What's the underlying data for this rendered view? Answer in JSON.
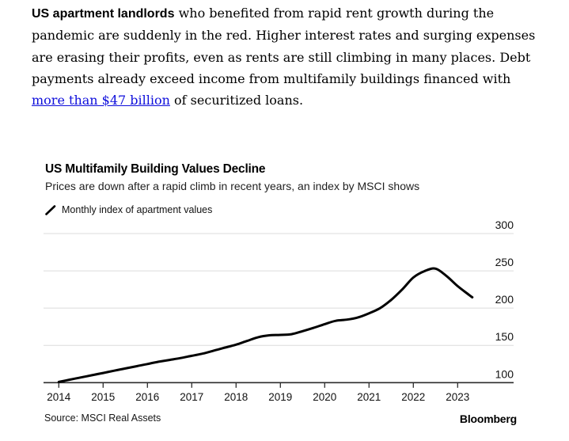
{
  "article": {
    "lead_bold": "US apartment landlords",
    "text_after_lead": " who benefited from rapid rent growth during the pandemic are suddenly in the red. Higher interest rates and surging expenses are erasing their profits, even as rents are still climbing in many places. Debt payments already exceed income from multifamily buildings financed with ",
    "link_text": "more than $47 billion",
    "text_after_link": " of securitized loans."
  },
  "chart": {
    "title": "US Multifamily Building Values Decline",
    "subtitle": "Prices are down after a rapid climb in recent years, an index by MSCI shows",
    "legend_label": "Monthly index of apartment values",
    "source": "Source: MSCI Real Assets",
    "brand": "Bloomberg"
  },
  "colors": {
    "link": "#0e0edb",
    "line": "#000000",
    "grid": "#dcdcdc",
    "axis": "#2b2b2b"
  },
  "chart_data": {
    "type": "line",
    "title": "US Multifamily Building Values Decline",
    "subtitle": "Prices are down after a rapid climb in recent years, an index by MSCI shows",
    "series_name": "Monthly index of apartment values",
    "x": [
      2014,
      2014.25,
      2014.5,
      2014.75,
      2015,
      2015.25,
      2015.5,
      2015.75,
      2016,
      2016.25,
      2016.5,
      2016.75,
      2017,
      2017.25,
      2017.5,
      2017.75,
      2018,
      2018.25,
      2018.5,
      2018.75,
      2019,
      2019.25,
      2019.5,
      2019.75,
      2020,
      2020.25,
      2020.5,
      2020.75,
      2021,
      2021.25,
      2021.5,
      2021.75,
      2022,
      2022.25,
      2022.5,
      2022.75,
      2023,
      2023.25,
      2023.33
    ],
    "y": [
      101,
      104,
      107,
      110,
      113,
      116,
      119,
      122,
      125,
      128,
      130.5,
      133,
      136,
      139,
      143,
      147,
      151,
      156,
      161,
      163.5,
      164,
      165,
      169,
      173.5,
      178.5,
      183,
      184.5,
      187.5,
      193,
      200,
      211,
      225,
      241,
      249.5,
      253,
      243,
      229.5,
      218,
      214.5
    ],
    "x_ticks": [
      2014,
      2015,
      2016,
      2017,
      2018,
      2019,
      2020,
      2021,
      2022,
      2023
    ],
    "y_ticks": [
      100,
      150,
      200,
      250,
      300
    ],
    "ylim": [
      100,
      310
    ],
    "xlim": [
      2013.9,
      2024.3
    ],
    "grid": "horizontal",
    "y_axis_side": "right",
    "legend_position": "top-left",
    "source": "Source: MSCI Real Assets",
    "brand": "Bloomberg"
  }
}
